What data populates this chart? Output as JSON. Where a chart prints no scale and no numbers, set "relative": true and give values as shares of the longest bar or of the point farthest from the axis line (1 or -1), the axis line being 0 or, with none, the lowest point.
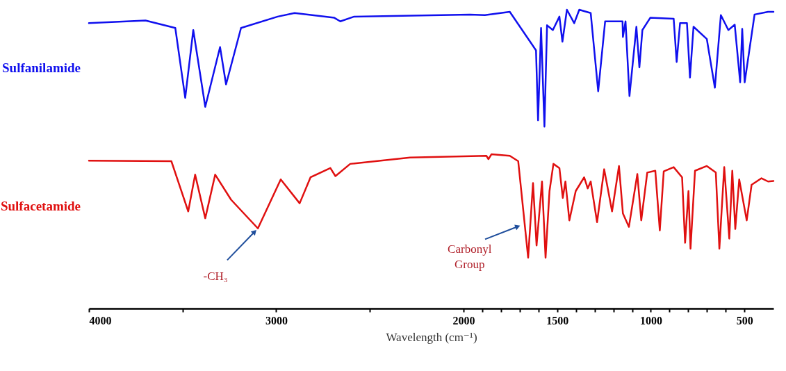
{
  "chart_data": {
    "type": "line",
    "relative": true,
    "xlabel": "Wavelength (cm⁻¹)",
    "xlim": [
      4000,
      345
    ],
    "xticks": [
      4000,
      {
        "value": 3500,
        "label": null
      },
      3000,
      {
        "value": 2500,
        "label": null
      },
      2000,
      {
        "value": 1900,
        "label": null
      },
      {
        "value": 1800,
        "label": null
      },
      {
        "value": 1700,
        "label": null
      },
      {
        "value": 1600,
        "label": null
      },
      1500,
      {
        "value": 1400,
        "label": null
      },
      {
        "value": 1300,
        "label": null
      },
      {
        "value": 1200,
        "label": null
      },
      {
        "value": 1100,
        "label": null
      },
      1000,
      {
        "value": 900,
        "label": null
      },
      {
        "value": 800,
        "label": null
      },
      {
        "value": 700,
        "label": null
      },
      {
        "value": 600,
        "label": null
      },
      500
    ],
    "series": [
      {
        "name": "Sulfanilamide",
        "color": "#1010ee",
        "x": [
          4000,
          3698,
          3539,
          3486,
          3443,
          3379,
          3300,
          3268,
          3188,
          2992,
          2902,
          2690,
          2658,
          2584,
          1966,
          1886,
          1753,
          1613,
          1602,
          1586,
          1568,
          1554,
          1523,
          1488,
          1472,
          1448,
          1409,
          1382,
          1321,
          1281,
          1244,
          1151,
          1149,
          1135,
          1114,
          1077,
          1061,
          1045,
          1003,
          878,
          862,
          844,
          807,
          791,
          772,
          701,
          658,
          626,
          586,
          552,
          523,
          512,
          499,
          446,
          374,
          345
        ],
        "values": [
          0.955,
          0.964,
          0.939,
          0.705,
          0.932,
          0.675,
          0.875,
          0.75,
          0.939,
          0.977,
          0.989,
          0.973,
          0.961,
          0.977,
          0.984,
          0.982,
          0.993,
          0.864,
          0.63,
          0.939,
          0.609,
          0.948,
          0.932,
          0.977,
          0.893,
          1.0,
          0.955,
          1.0,
          0.989,
          0.727,
          0.961,
          0.961,
          0.909,
          0.961,
          0.711,
          0.943,
          0.807,
          0.932,
          0.973,
          0.97,
          0.825,
          0.955,
          0.955,
          0.773,
          0.943,
          0.902,
          0.739,
          0.982,
          0.932,
          0.95,
          0.757,
          0.936,
          0.757,
          0.984,
          0.993,
          0.993
        ]
      },
      {
        "name": "Sulfacetamide",
        "color": "#e01010",
        "x": [
          4000,
          3560,
          3470,
          3433,
          3379,
          3326,
          3241,
          3098,
          2976,
          2875,
          2817,
          2711,
          2684,
          2605,
          2286,
          1878,
          1867,
          1851,
          1753,
          1708,
          1655,
          1629,
          1610,
          1581,
          1562,
          1541,
          1520,
          1488,
          1470,
          1456,
          1435,
          1401,
          1356,
          1337,
          1321,
          1287,
          1249,
          1207,
          1170,
          1149,
          1117,
          1072,
          1051,
          1019,
          976,
          952,
          931,
          878,
          833,
          817,
          799,
          788,
          764,
          701,
          653,
          634,
          608,
          581,
          565,
          549,
          528,
          488,
          462,
          409,
          374,
          345
        ],
        "values": [
          0.495,
          0.493,
          0.325,
          0.448,
          0.302,
          0.448,
          0.364,
          0.268,
          0.432,
          0.352,
          0.439,
          0.47,
          0.443,
          0.484,
          0.505,
          0.511,
          0.5,
          0.516,
          0.511,
          0.493,
          0.17,
          0.42,
          0.211,
          0.425,
          0.17,
          0.393,
          0.484,
          0.47,
          0.37,
          0.425,
          0.295,
          0.393,
          0.439,
          0.402,
          0.425,
          0.289,
          0.466,
          0.325,
          0.477,
          0.318,
          0.273,
          0.45,
          0.295,
          0.455,
          0.461,
          0.261,
          0.459,
          0.473,
          0.439,
          0.22,
          0.393,
          0.2,
          0.461,
          0.477,
          0.455,
          0.2,
          0.473,
          0.234,
          0.461,
          0.266,
          0.432,
          0.295,
          0.414,
          0.436,
          0.425,
          0.427
        ]
      }
    ],
    "annotations": [
      {
        "text": "-CH₃",
        "x": 3098,
        "y": 0.268
      },
      {
        "text": "Carbonyl Group",
        "x": 1687,
        "y": 0.28
      }
    ]
  }
}
